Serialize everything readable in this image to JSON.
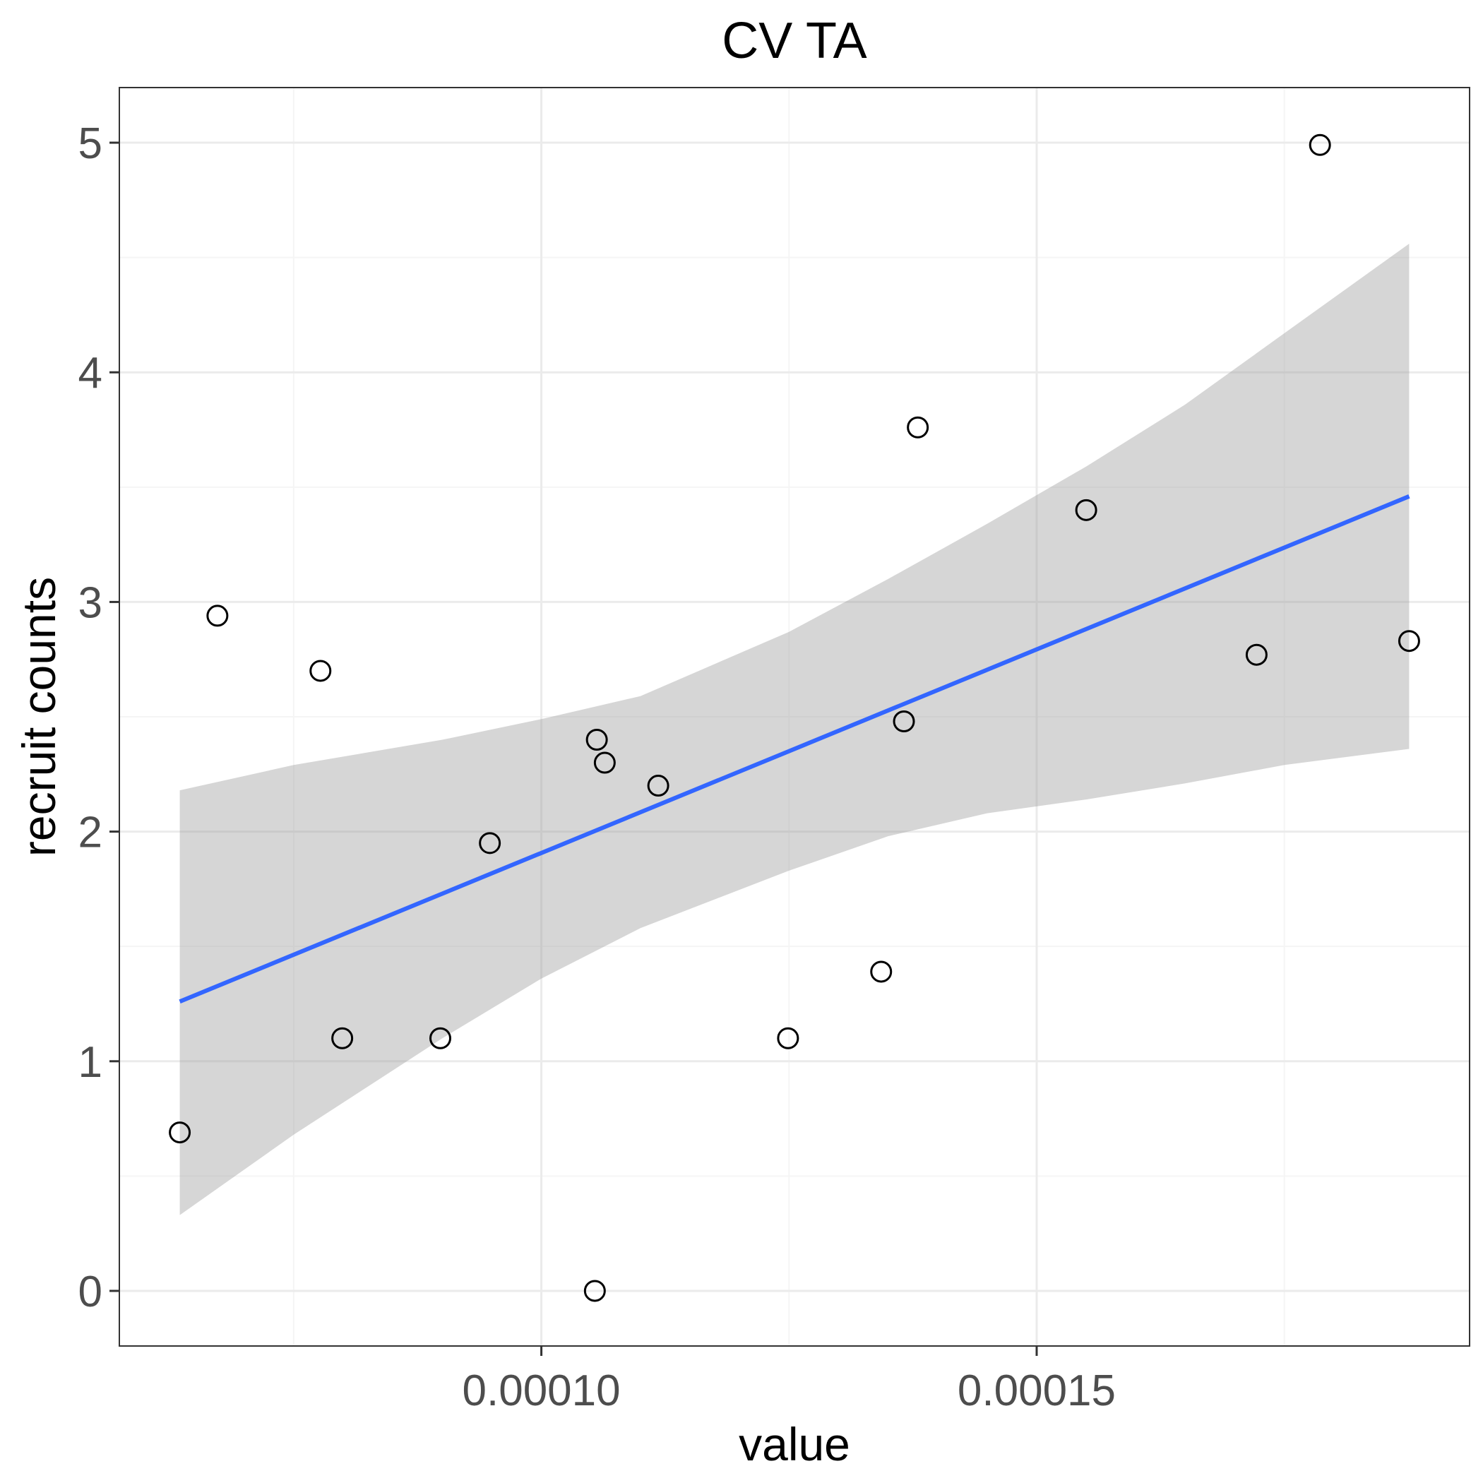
{
  "chart_data": {
    "type": "scatter",
    "title": "CV TA",
    "xlabel": "value",
    "ylabel": "recruit counts",
    "xlim": [
      5.74e-05,
      0.0001937
    ],
    "ylim": [
      -0.24,
      5.24
    ],
    "x_ticks": [
      {
        "value": 0.0001,
        "label": "0.00010"
      },
      {
        "value": 0.00015,
        "label": "0.00015"
      }
    ],
    "y_ticks": [
      {
        "value": 0,
        "label": "0"
      },
      {
        "value": 1,
        "label": "1"
      },
      {
        "value": 2,
        "label": "2"
      },
      {
        "value": 3,
        "label": "3"
      },
      {
        "value": 4,
        "label": "4"
      },
      {
        "value": 5,
        "label": "5"
      }
    ],
    "x_minor_ticks": [
      7.5e-05,
      0.000125,
      0.000175
    ],
    "y_minor_ticks": [
      0.5,
      1.5,
      2.5,
      3.5,
      4.5
    ],
    "grid": true,
    "points": [
      {
        "x": 6.35e-05,
        "y": 0.69
      },
      {
        "x": 6.73e-05,
        "y": 2.94
      },
      {
        "x": 7.77e-05,
        "y": 2.7
      },
      {
        "x": 7.99e-05,
        "y": 1.1
      },
      {
        "x": 8.98e-05,
        "y": 1.1
      },
      {
        "x": 9.48e-05,
        "y": 1.95
      },
      {
        "x": 0.0001054,
        "y": 0.0
      },
      {
        "x": 0.0001056,
        "y": 2.4
      },
      {
        "x": 0.0001064,
        "y": 2.3
      },
      {
        "x": 0.0001118,
        "y": 2.2
      },
      {
        "x": 0.0001249,
        "y": 1.1
      },
      {
        "x": 0.0001343,
        "y": 1.39
      },
      {
        "x": 0.0001366,
        "y": 2.48
      },
      {
        "x": 0.000138,
        "y": 3.76
      },
      {
        "x": 0.000155,
        "y": 3.4
      },
      {
        "x": 0.0001722,
        "y": 2.77
      },
      {
        "x": 0.0001786,
        "y": 4.99
      },
      {
        "x": 0.0001876,
        "y": 2.83
      }
    ],
    "trend": {
      "method": "linear",
      "x": [
        6.35e-05,
        0.0001876
      ],
      "y": [
        1.26,
        3.46
      ]
    },
    "confidence_band": {
      "x": [
        6.35e-05,
        7.5e-05,
        9e-05,
        0.0001,
        0.00011,
        0.000125,
        0.000135,
        0.000145,
        0.000155,
        0.000165,
        0.000175,
        0.0001876
      ],
      "upper": [
        2.18,
        2.29,
        2.4,
        2.49,
        2.59,
        2.87,
        3.1,
        3.34,
        3.59,
        3.86,
        4.17,
        4.56
      ],
      "lower": [
        0.33,
        0.68,
        1.1,
        1.36,
        1.58,
        1.83,
        1.98,
        2.08,
        2.14,
        2.21,
        2.29,
        2.36
      ]
    },
    "colors": {
      "trend_line": "#3366ff",
      "band_fill": "#999999",
      "point_stroke": "#000000",
      "panel_border": "#333333",
      "grid_major": "#ebebeb",
      "grid_minor": "#f5f5f5"
    }
  }
}
